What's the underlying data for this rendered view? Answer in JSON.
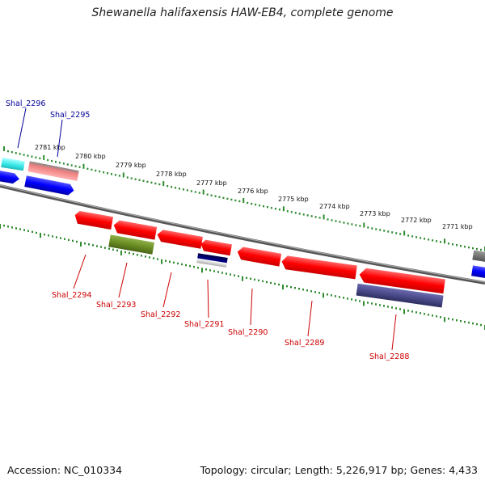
{
  "title": "Shewanella halifaxensis HAW-EB4, complete genome",
  "footer": {
    "accession": "Accession: NC_010334",
    "summary": "Topology: circular; Length: 5,226,917 bp; Genes: 4,433"
  },
  "kbp_ticks": [
    "2781 kbp",
    "2780 kbp",
    "2779 kbp",
    "2778 kbp",
    "2777 kbp",
    "2776 kbp",
    "2775 kbp",
    "2774 kbp",
    "2773 kbp",
    "2772 kbp",
    "2771 kbp"
  ],
  "genes_top": [
    {
      "label": "Shal_2296",
      "color": "#000099"
    },
    {
      "label": "Shal_2295",
      "color": "#000099"
    }
  ],
  "genes_bottom": [
    {
      "label": "Shal_2294",
      "color": "#cc0000"
    },
    {
      "label": "Shal_2293",
      "color": "#cc0000"
    },
    {
      "label": "Shal_2292",
      "color": "#cc0000"
    },
    {
      "label": "Shal_2291",
      "color": "#cc0000"
    },
    {
      "label": "Shal_2290",
      "color": "#cc0000"
    },
    {
      "label": "Shal_2289",
      "color": "#cc0000"
    },
    {
      "label": "Shal_2288",
      "color": "#cc0000"
    }
  ],
  "colors": {
    "backbone": "#808080",
    "tick": "#2e8b2e",
    "cds_red": "#ff0000",
    "cds_blue": "#0000ff",
    "cyan": "#33e6e6",
    "pink": "#f08080",
    "olive": "#6b8e23",
    "slate": "#4b4b8b",
    "navy": "#000066",
    "gray": "#808080"
  }
}
